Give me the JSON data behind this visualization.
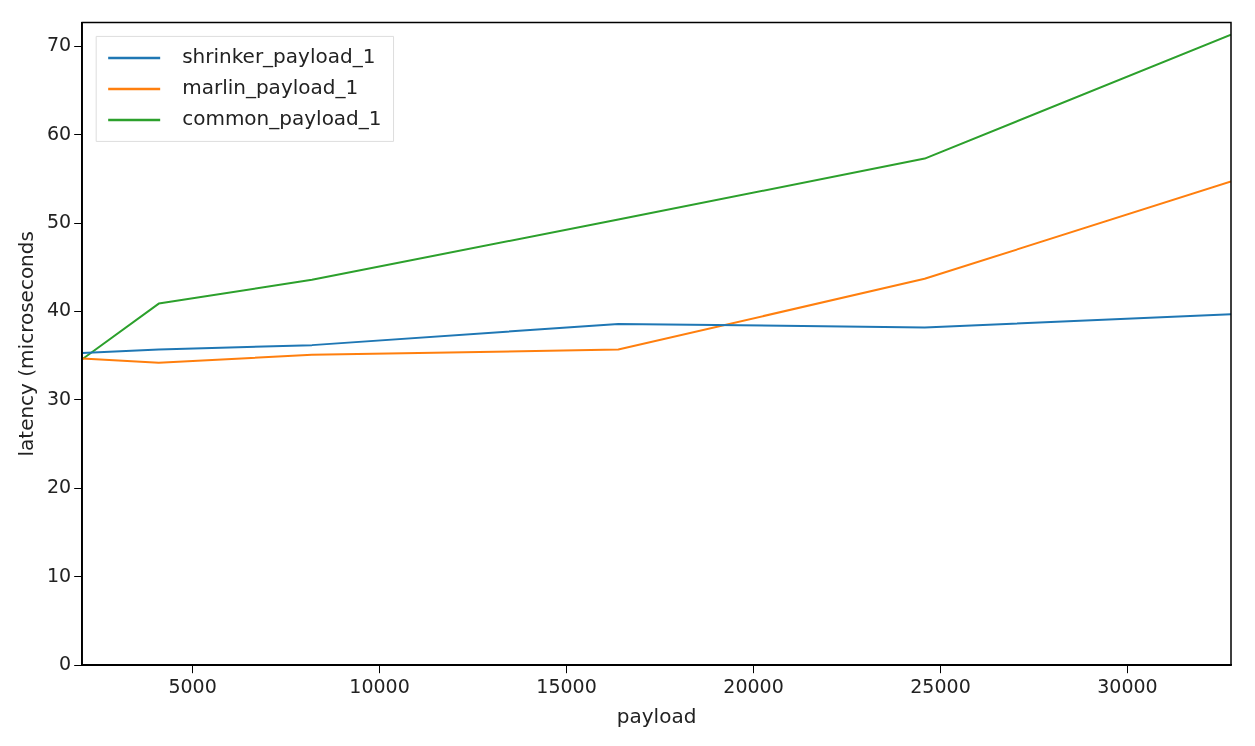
{
  "chart_data": {
    "type": "line",
    "xlabel": "payload",
    "ylabel": "latency (microseconds",
    "x": [
      2048,
      4096,
      8192,
      16384,
      24576,
      32768
    ],
    "series": [
      {
        "name": "shrinker_payload_1",
        "color": "#1f77b4",
        "values": [
          35.3,
          35.7,
          36.2,
          38.6,
          38.2,
          39.7
        ]
      },
      {
        "name": "marlin_payload_1",
        "color": "#ff7f0e",
        "values": [
          34.7,
          34.2,
          35.1,
          35.7,
          43.7,
          54.7
        ]
      },
      {
        "name": "common_payload_1",
        "color": "#2ca02c",
        "values": [
          34.6,
          40.9,
          43.6,
          50.4,
          57.3,
          71.3
        ]
      }
    ],
    "xlim": [
      2048,
      32768
    ],
    "xticks": [
      5000,
      10000,
      15000,
      20000,
      25000,
      30000
    ],
    "ylim": [
      0,
      72.7
    ],
    "yticks": [
      0,
      10,
      20,
      30,
      40,
      50,
      60,
      70
    ],
    "grid": false,
    "legend": "top left",
    "marker": "none",
    "line_style": "solid"
  }
}
